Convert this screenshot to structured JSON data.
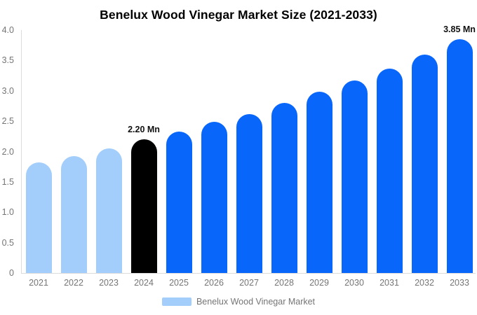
{
  "title": "Benelux Wood Vinegar Market Size (2021-2033)",
  "legend": {
    "label": "Benelux Wood Vinegar Market",
    "swatch_color": "#A3CEFB"
  },
  "colors": {
    "historical": "#A3CEFB",
    "base_year": "#000000",
    "forecast": "#0866FB",
    "axis_line": "#DCDCDC",
    "tick_text": "#757575",
    "title_text": "#000000",
    "annotation_text": "#111111"
  },
  "chart_data": {
    "type": "bar",
    "title": "Benelux Wood Vinegar Market Size (2021-2033)",
    "unit": "Mn",
    "categories": [
      "2021",
      "2022",
      "2023",
      "2024",
      "2025",
      "2026",
      "2027",
      "2028",
      "2029",
      "2030",
      "2031",
      "2032",
      "2033"
    ],
    "values": [
      1.82,
      1.93,
      2.05,
      2.2,
      2.33,
      2.49,
      2.62,
      2.8,
      2.98,
      3.17,
      3.37,
      3.6,
      3.85
    ],
    "bar_color_roles": [
      "historical",
      "historical",
      "historical",
      "base_year",
      "forecast",
      "forecast",
      "forecast",
      "forecast",
      "forecast",
      "forecast",
      "forecast",
      "forecast",
      "forecast"
    ],
    "annotations": [
      {
        "category": "2024",
        "text": "2.20 Mn"
      },
      {
        "category": "2033",
        "text": "3.85 Mn"
      }
    ],
    "ylim": [
      0,
      4
    ],
    "yticks": [
      "4.0",
      "3.5",
      "3.0",
      "2.5",
      "2.0",
      "1.5",
      "1.0",
      "0.5",
      "0"
    ],
    "xlabel": "",
    "ylabel": "",
    "grid": false,
    "legend_position": "bottom",
    "legend_entries": [
      "Benelux Wood Vinegar Market"
    ]
  }
}
